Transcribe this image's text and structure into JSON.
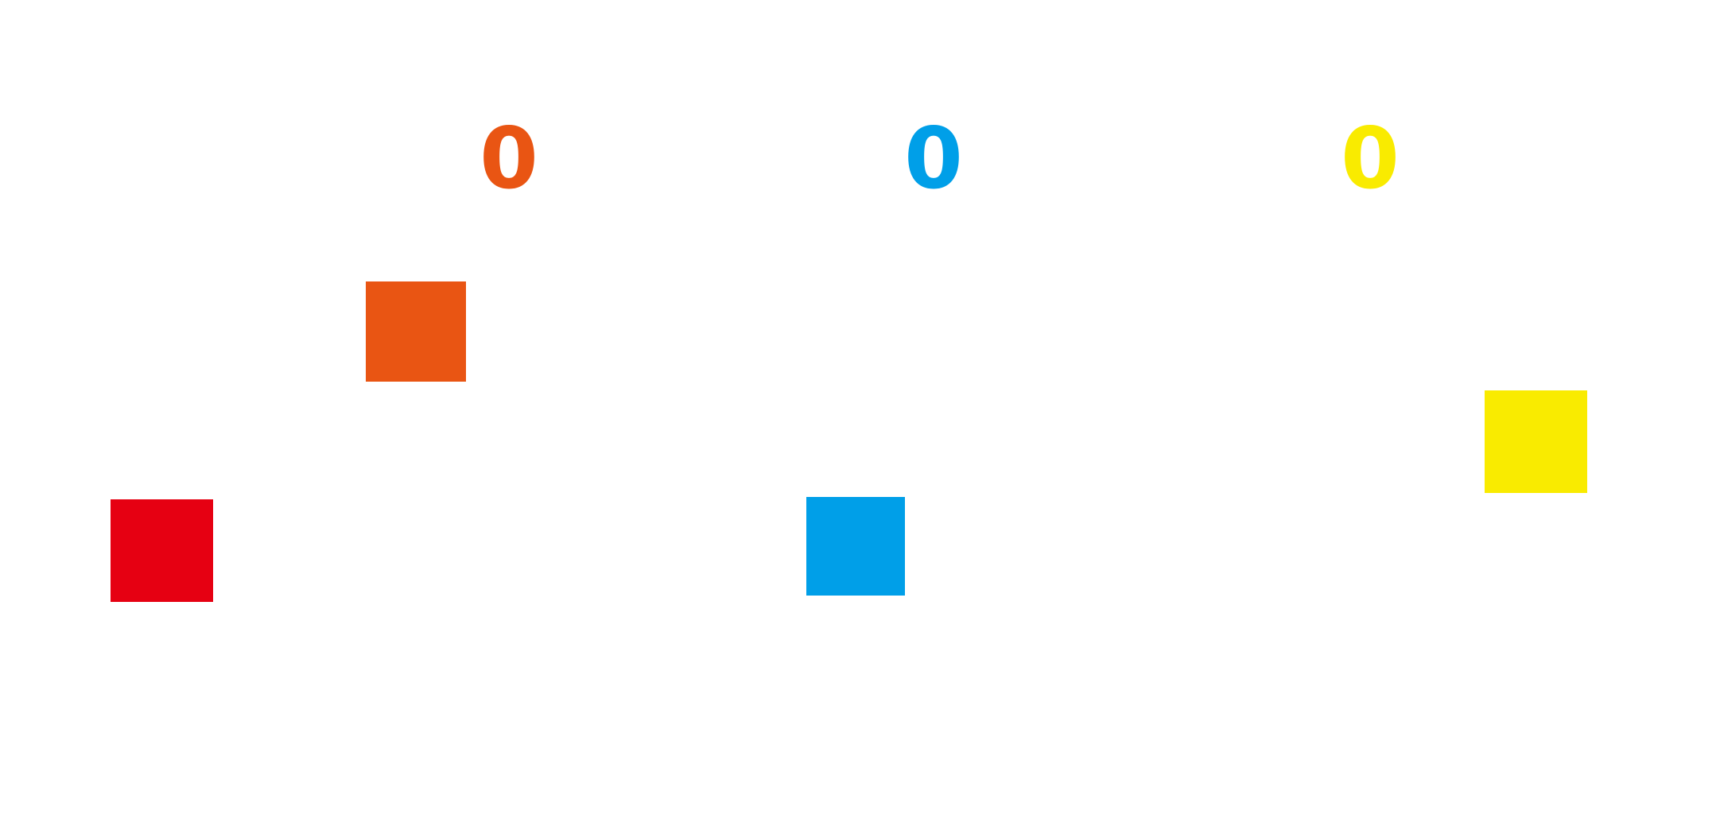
{
  "labels": [
    {
      "text": "0",
      "color": "#e95513"
    },
    {
      "text": "0",
      "color": "#009fe8"
    },
    {
      "text": "0",
      "color": "#f9eb00"
    }
  ],
  "squares": [
    {
      "color": "#e95513"
    },
    {
      "color": "#e60012"
    },
    {
      "color": "#009fe8"
    },
    {
      "color": "#f9eb00"
    }
  ]
}
